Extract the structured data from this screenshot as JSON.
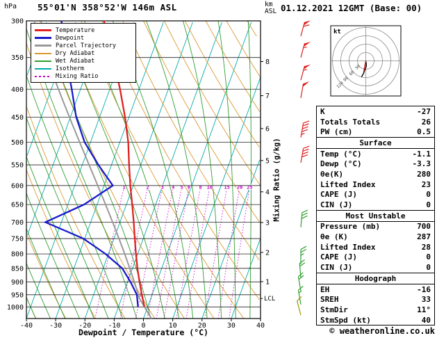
{
  "header": {
    "pressure_unit": "hPa",
    "title": "55°01'N 358°52'W 146m ASL",
    "altitude_unit_line1": "km",
    "altitude_unit_line2": "ASL",
    "datetime": "01.12.2021 12GMT (Base: 00)"
  },
  "chart_data": {
    "type": "skewt-log-p",
    "pressure_range": [
      300,
      1050
    ],
    "pressure_ticks": [
      300,
      350,
      400,
      450,
      500,
      550,
      600,
      650,
      700,
      750,
      800,
      850,
      900,
      950,
      1000
    ],
    "temp_axis": {
      "label": "Dewpoint / Temperature (°C)",
      "min": -40,
      "max": 40,
      "ticks": [
        -40,
        -30,
        -20,
        -10,
        0,
        10,
        20,
        30,
        40
      ]
    },
    "skew_ratio": 0.364,
    "km_ticks": [
      {
        "km": 1,
        "p": 899
      },
      {
        "km": 2,
        "p": 795
      },
      {
        "km": 3,
        "p": 701
      },
      {
        "km": 4,
        "p": 616
      },
      {
        "km": 5,
        "p": 540
      },
      {
        "km": 6,
        "p": 472
      },
      {
        "km": 7,
        "p": 411
      },
      {
        "km": 8,
        "p": 356
      }
    ],
    "lcl": {
      "label": "LCL",
      "p": 965
    },
    "mixing_ratio": {
      "label": "Mixing Ratio (g/kg)",
      "values": [
        1,
        2,
        3,
        4,
        5,
        6,
        8,
        10,
        15,
        20,
        25
      ],
      "top_p": 608
    },
    "isotherm_step": 10,
    "dry_adiabat_step": 10,
    "wet_adiabat_step": 5,
    "colors": {
      "isotherm": "#00a9a9",
      "dry_adiabat": "#dd9933",
      "wet_adiabat": "#2f9e2f",
      "mixing_ratio": "#cc00cc",
      "grid": "#222222"
    },
    "series": {
      "temperature": {
        "name": "Temperature",
        "color": "#e02020",
        "points": [
          [
            1000,
            -1.1
          ],
          [
            950,
            -3.5
          ],
          [
            900,
            -5.9
          ],
          [
            850,
            -8.3
          ],
          [
            800,
            -10.6
          ],
          [
            750,
            -12.9
          ],
          [
            700,
            -15.3
          ],
          [
            650,
            -18.0
          ],
          [
            600,
            -21.0
          ],
          [
            550,
            -24.0
          ],
          [
            500,
            -27.1
          ],
          [
            450,
            -31.3
          ],
          [
            400,
            -36.5
          ],
          [
            350,
            -42.8
          ],
          [
            300,
            -50.5
          ]
        ]
      },
      "dewpoint": {
        "name": "Dewpoint",
        "color": "#1818cc",
        "points": [
          [
            1000,
            -3.3
          ],
          [
            950,
            -5.2
          ],
          [
            900,
            -9.0
          ],
          [
            850,
            -13.5
          ],
          [
            800,
            -21.0
          ],
          [
            750,
            -30.5
          ],
          [
            700,
            -45.5
          ],
          [
            650,
            -34.5
          ],
          [
            600,
            -27.0
          ],
          [
            550,
            -34.5
          ],
          [
            500,
            -42.0
          ],
          [
            450,
            -48.0
          ],
          [
            400,
            -53.0
          ],
          [
            350,
            -59.0
          ],
          [
            300,
            -65.0
          ]
        ]
      },
      "parcel": {
        "name": "Parcel Trajectory",
        "color": "#999999",
        "surface": {
          "p": 1000,
          "t": -1.1,
          "td": -3.3
        }
      }
    },
    "legend": [
      {
        "label": "Temperature",
        "color": "#e02020"
      },
      {
        "label": "Dewpoint",
        "color": "#1818cc"
      },
      {
        "label": "Parcel Trajectory",
        "color": "#999999"
      },
      {
        "label": "Dry Adiabat",
        "color": "#dd9933"
      },
      {
        "label": "Wet Adiabat",
        "color": "#2f9e2f"
      },
      {
        "label": "Isotherm",
        "color": "#00a9a9"
      },
      {
        "label": "Mixing Ratio",
        "color": "#cc00cc"
      }
    ]
  },
  "hodograph": {
    "unit": "kt",
    "rings": [
      30,
      60,
      90,
      120
    ],
    "trace_kt": [
      [
        0,
        0
      ],
      [
        1.7,
        9.8
      ],
      [
        1.7,
        19.9
      ],
      [
        -2.6,
        29.9
      ],
      [
        -7.8,
        44.3
      ],
      [
        -15.5,
        58
      ]
    ],
    "storm_vector_kt": [
      -7.6,
      39.3
    ]
  },
  "wind_barbs": [
    {
      "p": 320,
      "speed": 60,
      "dir": 15,
      "color": "#e02020"
    },
    {
      "p": 350,
      "speed": 55,
      "dir": 15,
      "color": "#e02020"
    },
    {
      "p": 385,
      "speed": 55,
      "dir": 15,
      "color": "#e02020"
    },
    {
      "p": 415,
      "speed": 50,
      "dir": 10,
      "color": "#e02020"
    },
    {
      "p": 490,
      "speed": 45,
      "dir": 10,
      "color": "#e02020"
    },
    {
      "p": 545,
      "speed": 40,
      "dir": 10,
      "color": "#e02020"
    },
    {
      "p": 715,
      "speed": 30,
      "dir": 5,
      "color": "#2f9e2f"
    },
    {
      "p": 835,
      "speed": 25,
      "dir": 360,
      "color": "#2f9e2f"
    },
    {
      "p": 885,
      "speed": 20,
      "dir": 355,
      "color": "#2f9e2f"
    },
    {
      "p": 935,
      "speed": 20,
      "dir": 350,
      "color": "#2f9e2f"
    },
    {
      "p": 990,
      "speed": 15,
      "dir": 350,
      "color": "#2f9e2f"
    },
    {
      "p": 1035,
      "speed": 10,
      "dir": 345,
      "color": "#9a9a00"
    }
  ],
  "stats": {
    "top": [
      {
        "label": "K",
        "value": "-27"
      },
      {
        "label": "Totals Totals",
        "value": "26"
      },
      {
        "label": "PW (cm)",
        "value": "0.5"
      }
    ],
    "surface": {
      "title": "Surface",
      "rows": [
        {
          "label": "Temp (°C)",
          "value": "-1.1"
        },
        {
          "label": "Dewp (°C)",
          "value": "-3.3"
        },
        {
          "label": "θe(K)",
          "value": "280"
        },
        {
          "label": "Lifted Index",
          "value": "23"
        },
        {
          "label": "CAPE (J)",
          "value": "0"
        },
        {
          "label": "CIN (J)",
          "value": "0"
        }
      ]
    },
    "most_unstable": {
      "title": "Most Unstable",
      "rows": [
        {
          "label": "Pressure (mb)",
          "value": "700"
        },
        {
          "label": "θe (K)",
          "value": "287"
        },
        {
          "label": "Lifted Index",
          "value": "28"
        },
        {
          "label": "CAPE (J)",
          "value": "0"
        },
        {
          "label": "CIN (J)",
          "value": "0"
        }
      ]
    },
    "hodograph": {
      "title": "Hodograph",
      "rows": [
        {
          "label": "EH",
          "value": "-16"
        },
        {
          "label": "SREH",
          "value": "33"
        },
        {
          "label": "StmDir",
          "value": "11°"
        },
        {
          "label": "StmSpd (kt)",
          "value": "40"
        }
      ]
    }
  },
  "footer": {
    "copyright": "© weatheronline.co.uk"
  }
}
